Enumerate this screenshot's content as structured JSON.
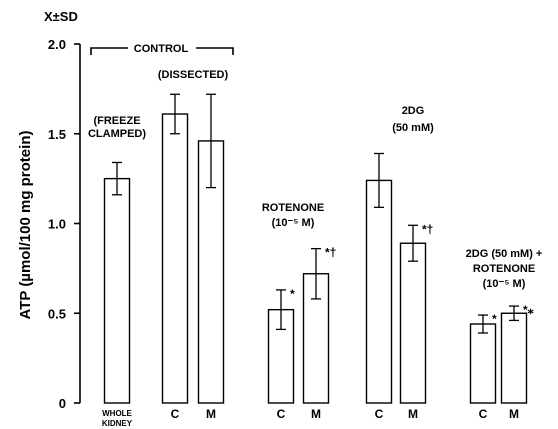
{
  "chart_data": {
    "type": "bar",
    "ylabel": "ATP (µmol/100 mg protein)",
    "ylabel_left": "X±SD",
    "ylim": [
      0,
      2.0
    ],
    "yticks": [
      "0",
      "0.5",
      "1.0",
      "1.5",
      "2.0"
    ],
    "error_bars": true,
    "bars": [
      {
        "group": "whole_kidney",
        "label": "WHOLE KIDNEY",
        "value": 1.25,
        "err": 0.09,
        "mark": ""
      },
      {
        "group": "control",
        "label": "C",
        "value": 1.61,
        "err": 0.11,
        "mark": ""
      },
      {
        "group": "control",
        "label": "M",
        "value": 1.46,
        "err": 0.26,
        "mark": ""
      },
      {
        "group": "rotenone",
        "label": "C",
        "value": 0.52,
        "err": 0.11,
        "mark": "*"
      },
      {
        "group": "rotenone",
        "label": "M",
        "value": 0.72,
        "err": 0.14,
        "mark": "*†"
      },
      {
        "group": "2dg",
        "label": "C",
        "value": 1.24,
        "err": 0.15,
        "mark": ""
      },
      {
        "group": "2dg",
        "label": "M",
        "value": 0.89,
        "err": 0.1,
        "mark": "*†"
      },
      {
        "group": "2dg_rotenone",
        "label": "C",
        "value": 0.44,
        "err": 0.05,
        "mark": "*"
      },
      {
        "group": "2dg_rotenone",
        "label": "M",
        "value": 0.5,
        "err": 0.04,
        "mark": "*⁎"
      }
    ],
    "annotations": {
      "control": "CONTROL",
      "dissected": "(DISSECTED)",
      "freeze_1": "(FREEZE",
      "freeze_2": "CLAMPED)",
      "rot_1": "ROTENONE",
      "rot_2": "(10⁻⁵ M)",
      "dg_1": "2DG",
      "dg_2": "(50 mM)",
      "combo_1": "2DG (50 mM) +",
      "combo_2": "ROTENONE",
      "combo_3": "(10⁻⁵ M)"
    }
  }
}
